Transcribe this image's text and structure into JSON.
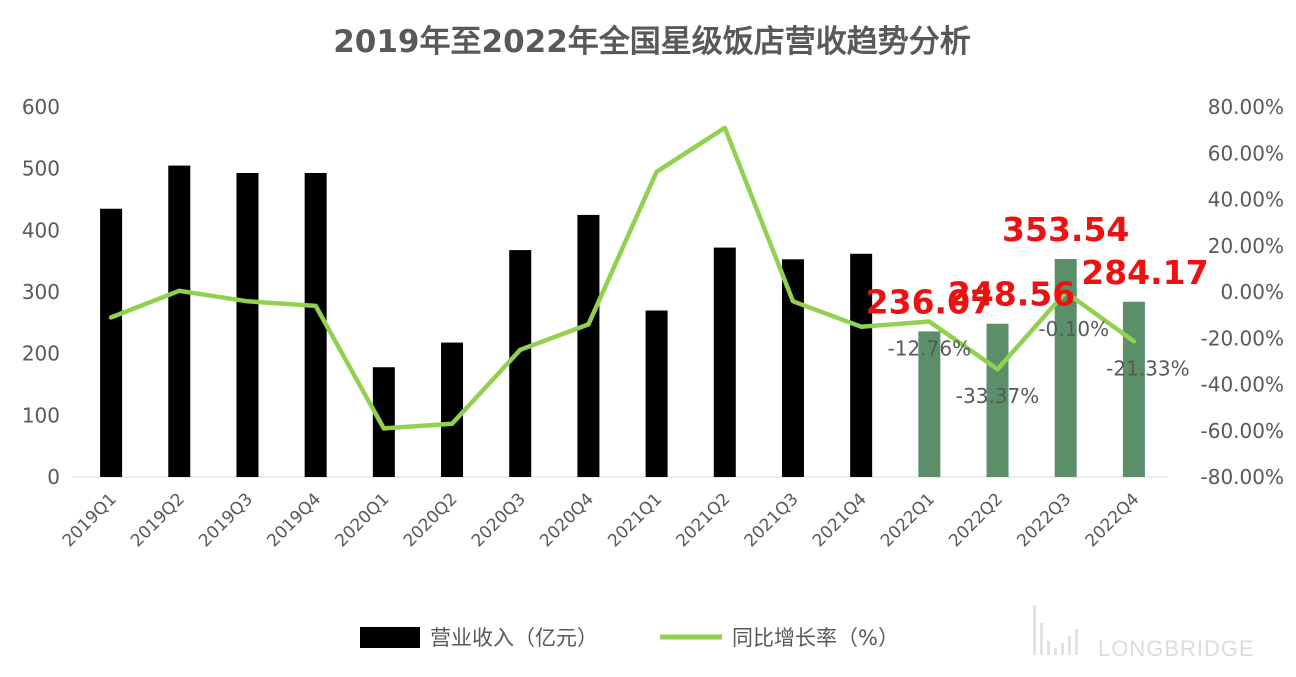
{
  "chart_data": {
    "type": "bar",
    "title": "2019年至2022年全国星级饭店营收趋势分析",
    "categories": [
      "2019Q1",
      "2019Q2",
      "2019Q3",
      "2019Q4",
      "2020Q1",
      "2020Q2",
      "2020Q3",
      "2020Q4",
      "2021Q1",
      "2021Q2",
      "2021Q3",
      "2021Q4",
      "2022Q1",
      "2022Q2",
      "2022Q3",
      "2022Q4"
    ],
    "series": [
      {
        "name": "营业收入（亿元）",
        "type": "bar",
        "axis": "left",
        "values": [
          435,
          505,
          493,
          493,
          178,
          218,
          368,
          425,
          270,
          372,
          353,
          362,
          236.07,
          248.56,
          353.54,
          284.17
        ],
        "colors": [
          "#000000",
          "#000000",
          "#000000",
          "#000000",
          "#000000",
          "#000000",
          "#000000",
          "#000000",
          "#000000",
          "#000000",
          "#000000",
          "#000000",
          "#5a8f69",
          "#5a8f69",
          "#5a8f69",
          "#5a8f69"
        ]
      },
      {
        "name": "同比增长率（%）",
        "type": "line",
        "axis": "right",
        "color": "#92d050",
        "values": [
          -11,
          0.5,
          -4,
          -6,
          -59,
          -57,
          -25,
          -14,
          52,
          71,
          -4,
          -15,
          -12.76,
          -33.37,
          -0.1,
          -21.33
        ]
      }
    ],
    "y_left": {
      "min": 0,
      "max": 600,
      "ticks": [
        "0",
        "100",
        "200",
        "300",
        "400",
        "500",
        "600"
      ]
    },
    "y_right": {
      "min": -80,
      "max": 80,
      "ticks": [
        "-80.00%",
        "-60.00%",
        "-40.00%",
        "-20.00%",
        "0.00%",
        "20.00%",
        "40.00%",
        "60.00%",
        "80.00%"
      ]
    },
    "value_labels": [
      "236.07",
      "248.56",
      "353.54",
      "284.17"
    ],
    "percent_labels": [
      "-12.76%",
      "-33.37%",
      "-0.10%",
      "-21.33%"
    ],
    "legend_position": "bottom",
    "grid": false
  },
  "watermark": "LONGBRIDGE"
}
